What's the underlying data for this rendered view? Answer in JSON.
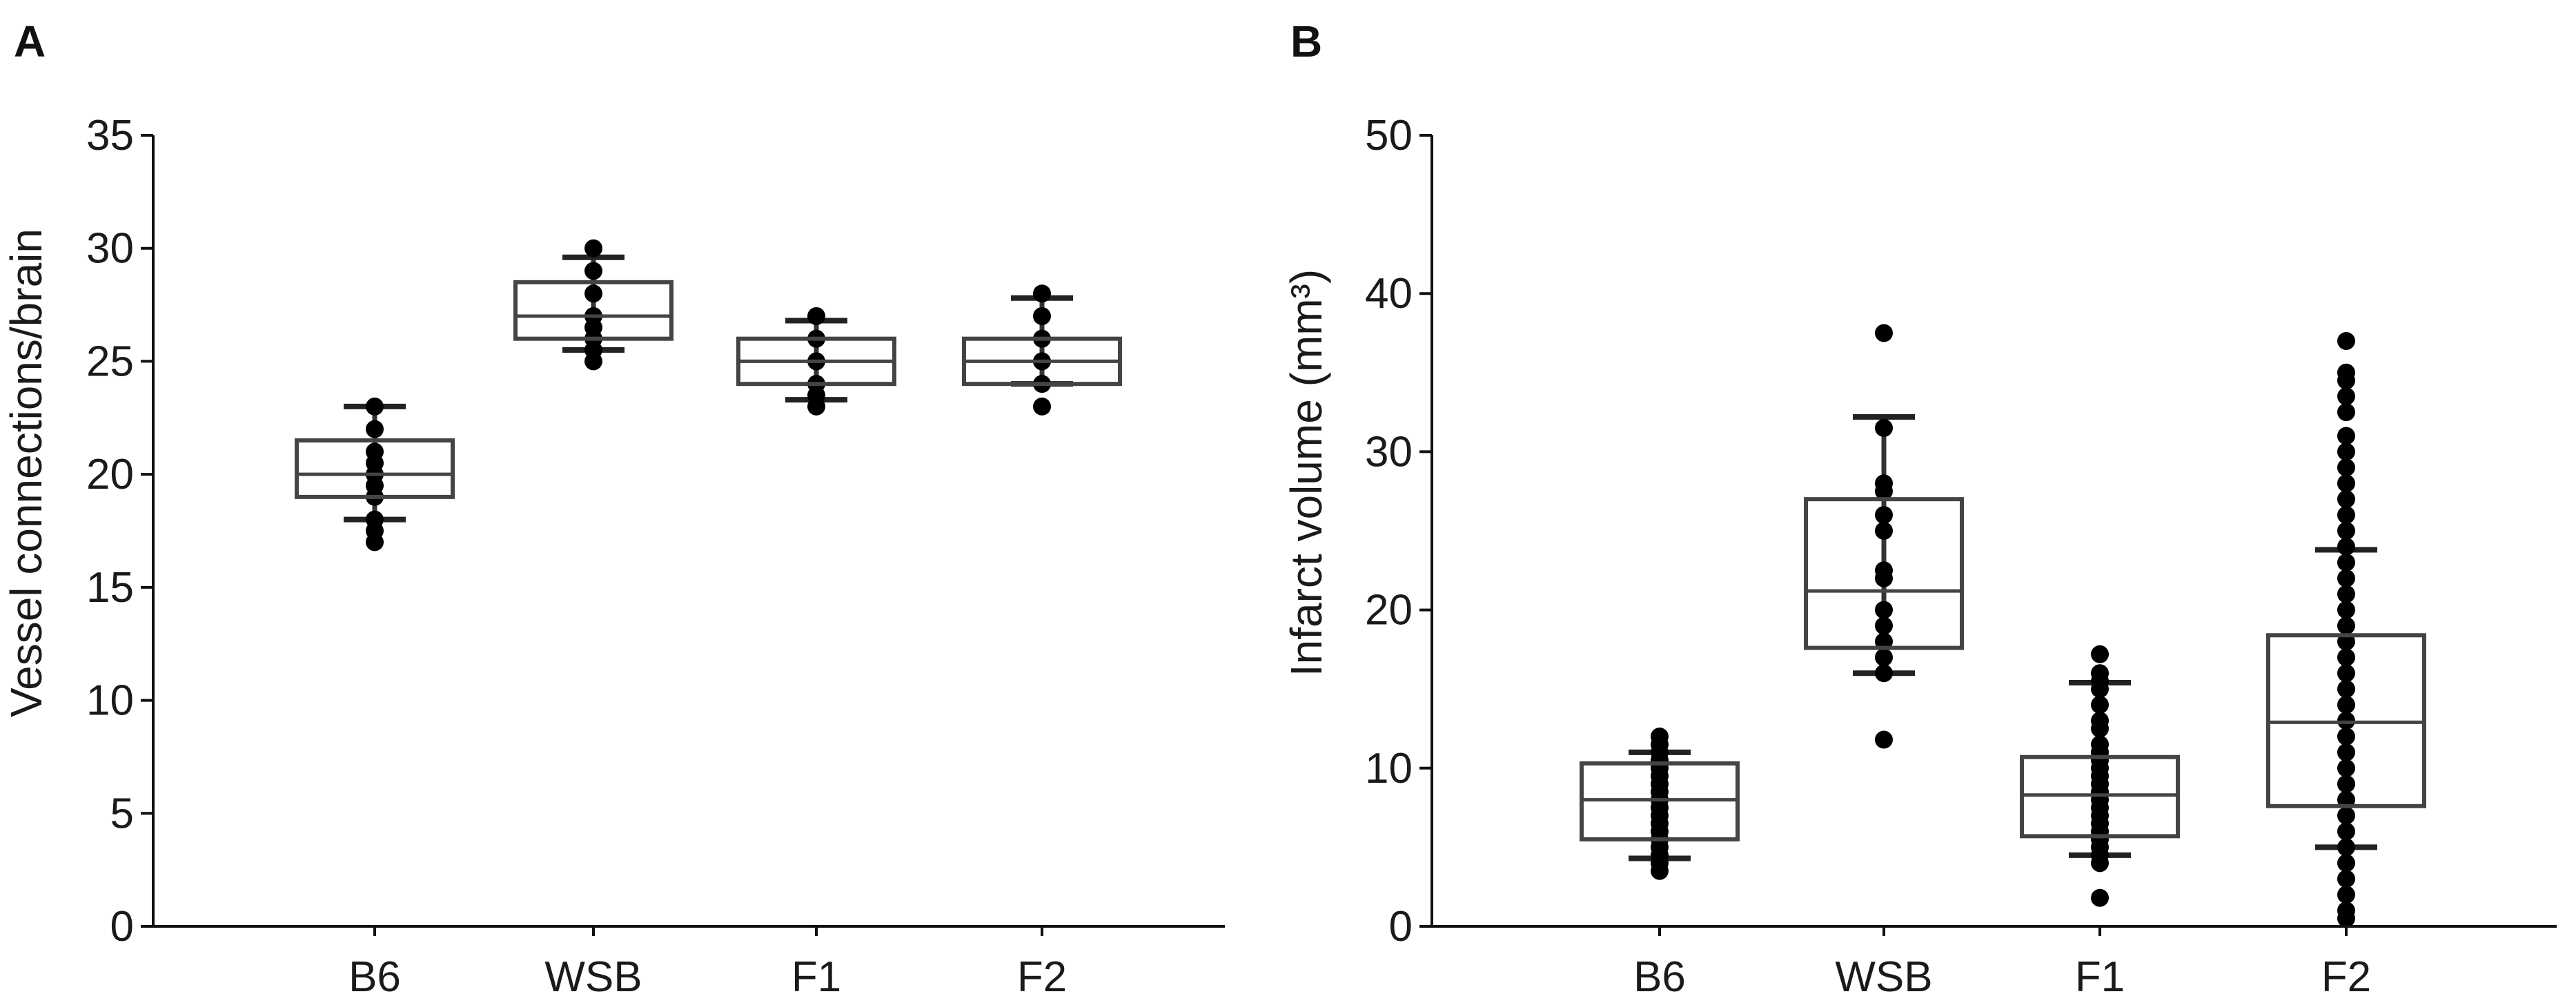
{
  "chart_data": [
    {
      "type": "box",
      "panel_label": "A",
      "ylabel": "Vessel connections/brain",
      "xlabel": "",
      "ylim": [
        0,
        35
      ],
      "yticks": [
        0,
        5,
        10,
        15,
        20,
        25,
        30,
        35
      ],
      "categories": [
        "B6",
        "WSB",
        "F1",
        "F2"
      ],
      "boxes": [
        {
          "category": "B6",
          "min": 18,
          "q1": 19,
          "median": 20,
          "q3": 21.5,
          "max": 23,
          "points": [
            17,
            17.5,
            18,
            19,
            19.5,
            20,
            20.5,
            21,
            22,
            23
          ]
        },
        {
          "category": "WSB",
          "min": 25.5,
          "q1": 26,
          "median": 27,
          "q3": 28.5,
          "max": 29.6,
          "points": [
            25,
            25.5,
            26,
            26.5,
            27,
            28,
            29,
            30
          ]
        },
        {
          "category": "F1",
          "min": 23.3,
          "q1": 24,
          "median": 25,
          "q3": 26,
          "max": 26.8,
          "points": [
            23,
            23.5,
            24,
            25,
            26,
            27
          ]
        },
        {
          "category": "F2",
          "min": 24,
          "q1": 24,
          "median": 25,
          "q3": 26,
          "max": 27.8,
          "points": [
            23,
            24,
            25,
            26,
            27,
            28
          ]
        }
      ]
    },
    {
      "type": "box",
      "panel_label": "B",
      "ylabel": "Infarct volume (mm³)",
      "xlabel": "",
      "ylim": [
        0,
        50
      ],
      "yticks": [
        0,
        10,
        20,
        30,
        40,
        50
      ],
      "categories": [
        "B6",
        "WSB",
        "F1",
        "F2"
      ],
      "boxes": [
        {
          "category": "B6",
          "min": 4.3,
          "q1": 5.5,
          "median": 8,
          "q3": 10.3,
          "max": 11,
          "points": [
            3.5,
            4,
            4.5,
            5,
            5.5,
            6,
            6.5,
            7,
            7.5,
            8,
            8.5,
            9,
            9.5,
            10,
            10.5,
            11,
            11.5,
            12
          ]
        },
        {
          "category": "WSB",
          "min": 16,
          "q1": 17.6,
          "median": 21.2,
          "q3": 27,
          "max": 32.2,
          "points": [
            11.8,
            16,
            17,
            18,
            19,
            20,
            22,
            22.5,
            25,
            26,
            27.5,
            28,
            31.5,
            37.5
          ]
        },
        {
          "category": "F1",
          "min": 4.5,
          "q1": 5.7,
          "median": 8.3,
          "q3": 10.7,
          "max": 15.4,
          "points": [
            1.8,
            4,
            4.5,
            5,
            5.5,
            6,
            6.5,
            7,
            7.5,
            8,
            8.5,
            9,
            9.5,
            10,
            10.5,
            11,
            11.5,
            12.5,
            13,
            14,
            15,
            15.5,
            16,
            17.2
          ]
        },
        {
          "category": "F2",
          "min": 5,
          "q1": 7.6,
          "median": 12.9,
          "q3": 18.4,
          "max": 23.8,
          "points": [
            0.5,
            1,
            2,
            3,
            4,
            5,
            6,
            7,
            8,
            9,
            10,
            11,
            12,
            13,
            14,
            15,
            16,
            17,
            18,
            19,
            20,
            21,
            22,
            23,
            24,
            25,
            26,
            27,
            28,
            29,
            30,
            31,
            32.5,
            33.5,
            34.5,
            35,
            37
          ]
        }
      ]
    }
  ]
}
